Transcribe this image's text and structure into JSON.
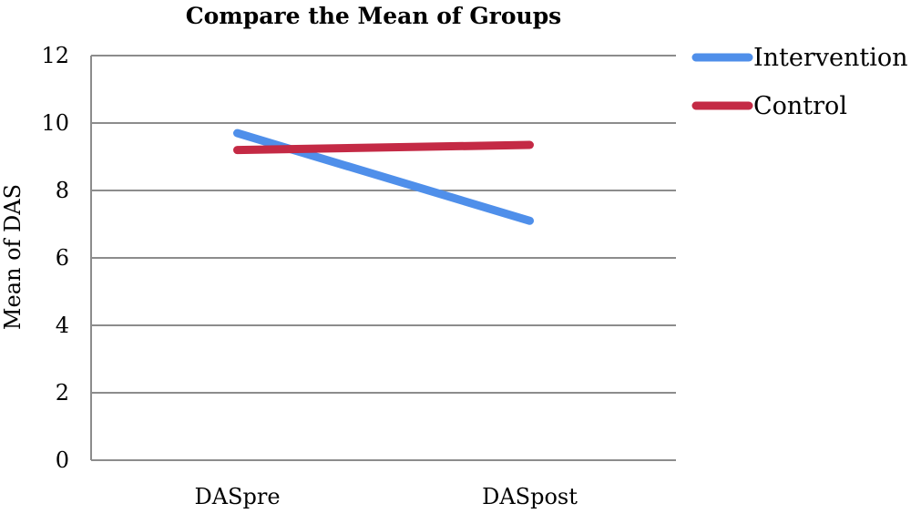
{
  "chart_data": {
    "type": "line",
    "title": "Compare the Mean of  Groups",
    "ylabel": "Mean of DAS",
    "xlabel": "",
    "categories": [
      "DASpre",
      "DASpost"
    ],
    "ylim": [
      0,
      12
    ],
    "yticks": [
      0,
      2,
      4,
      6,
      8,
      10,
      12
    ],
    "grid": true,
    "legend_position": "right",
    "series": [
      {
        "name": "Intervention",
        "color": "#4f8fea",
        "values": [
          9.7,
          7.1
        ]
      },
      {
        "name": "Control",
        "color": "#c42a45",
        "values": [
          9.2,
          9.35
        ]
      }
    ]
  }
}
